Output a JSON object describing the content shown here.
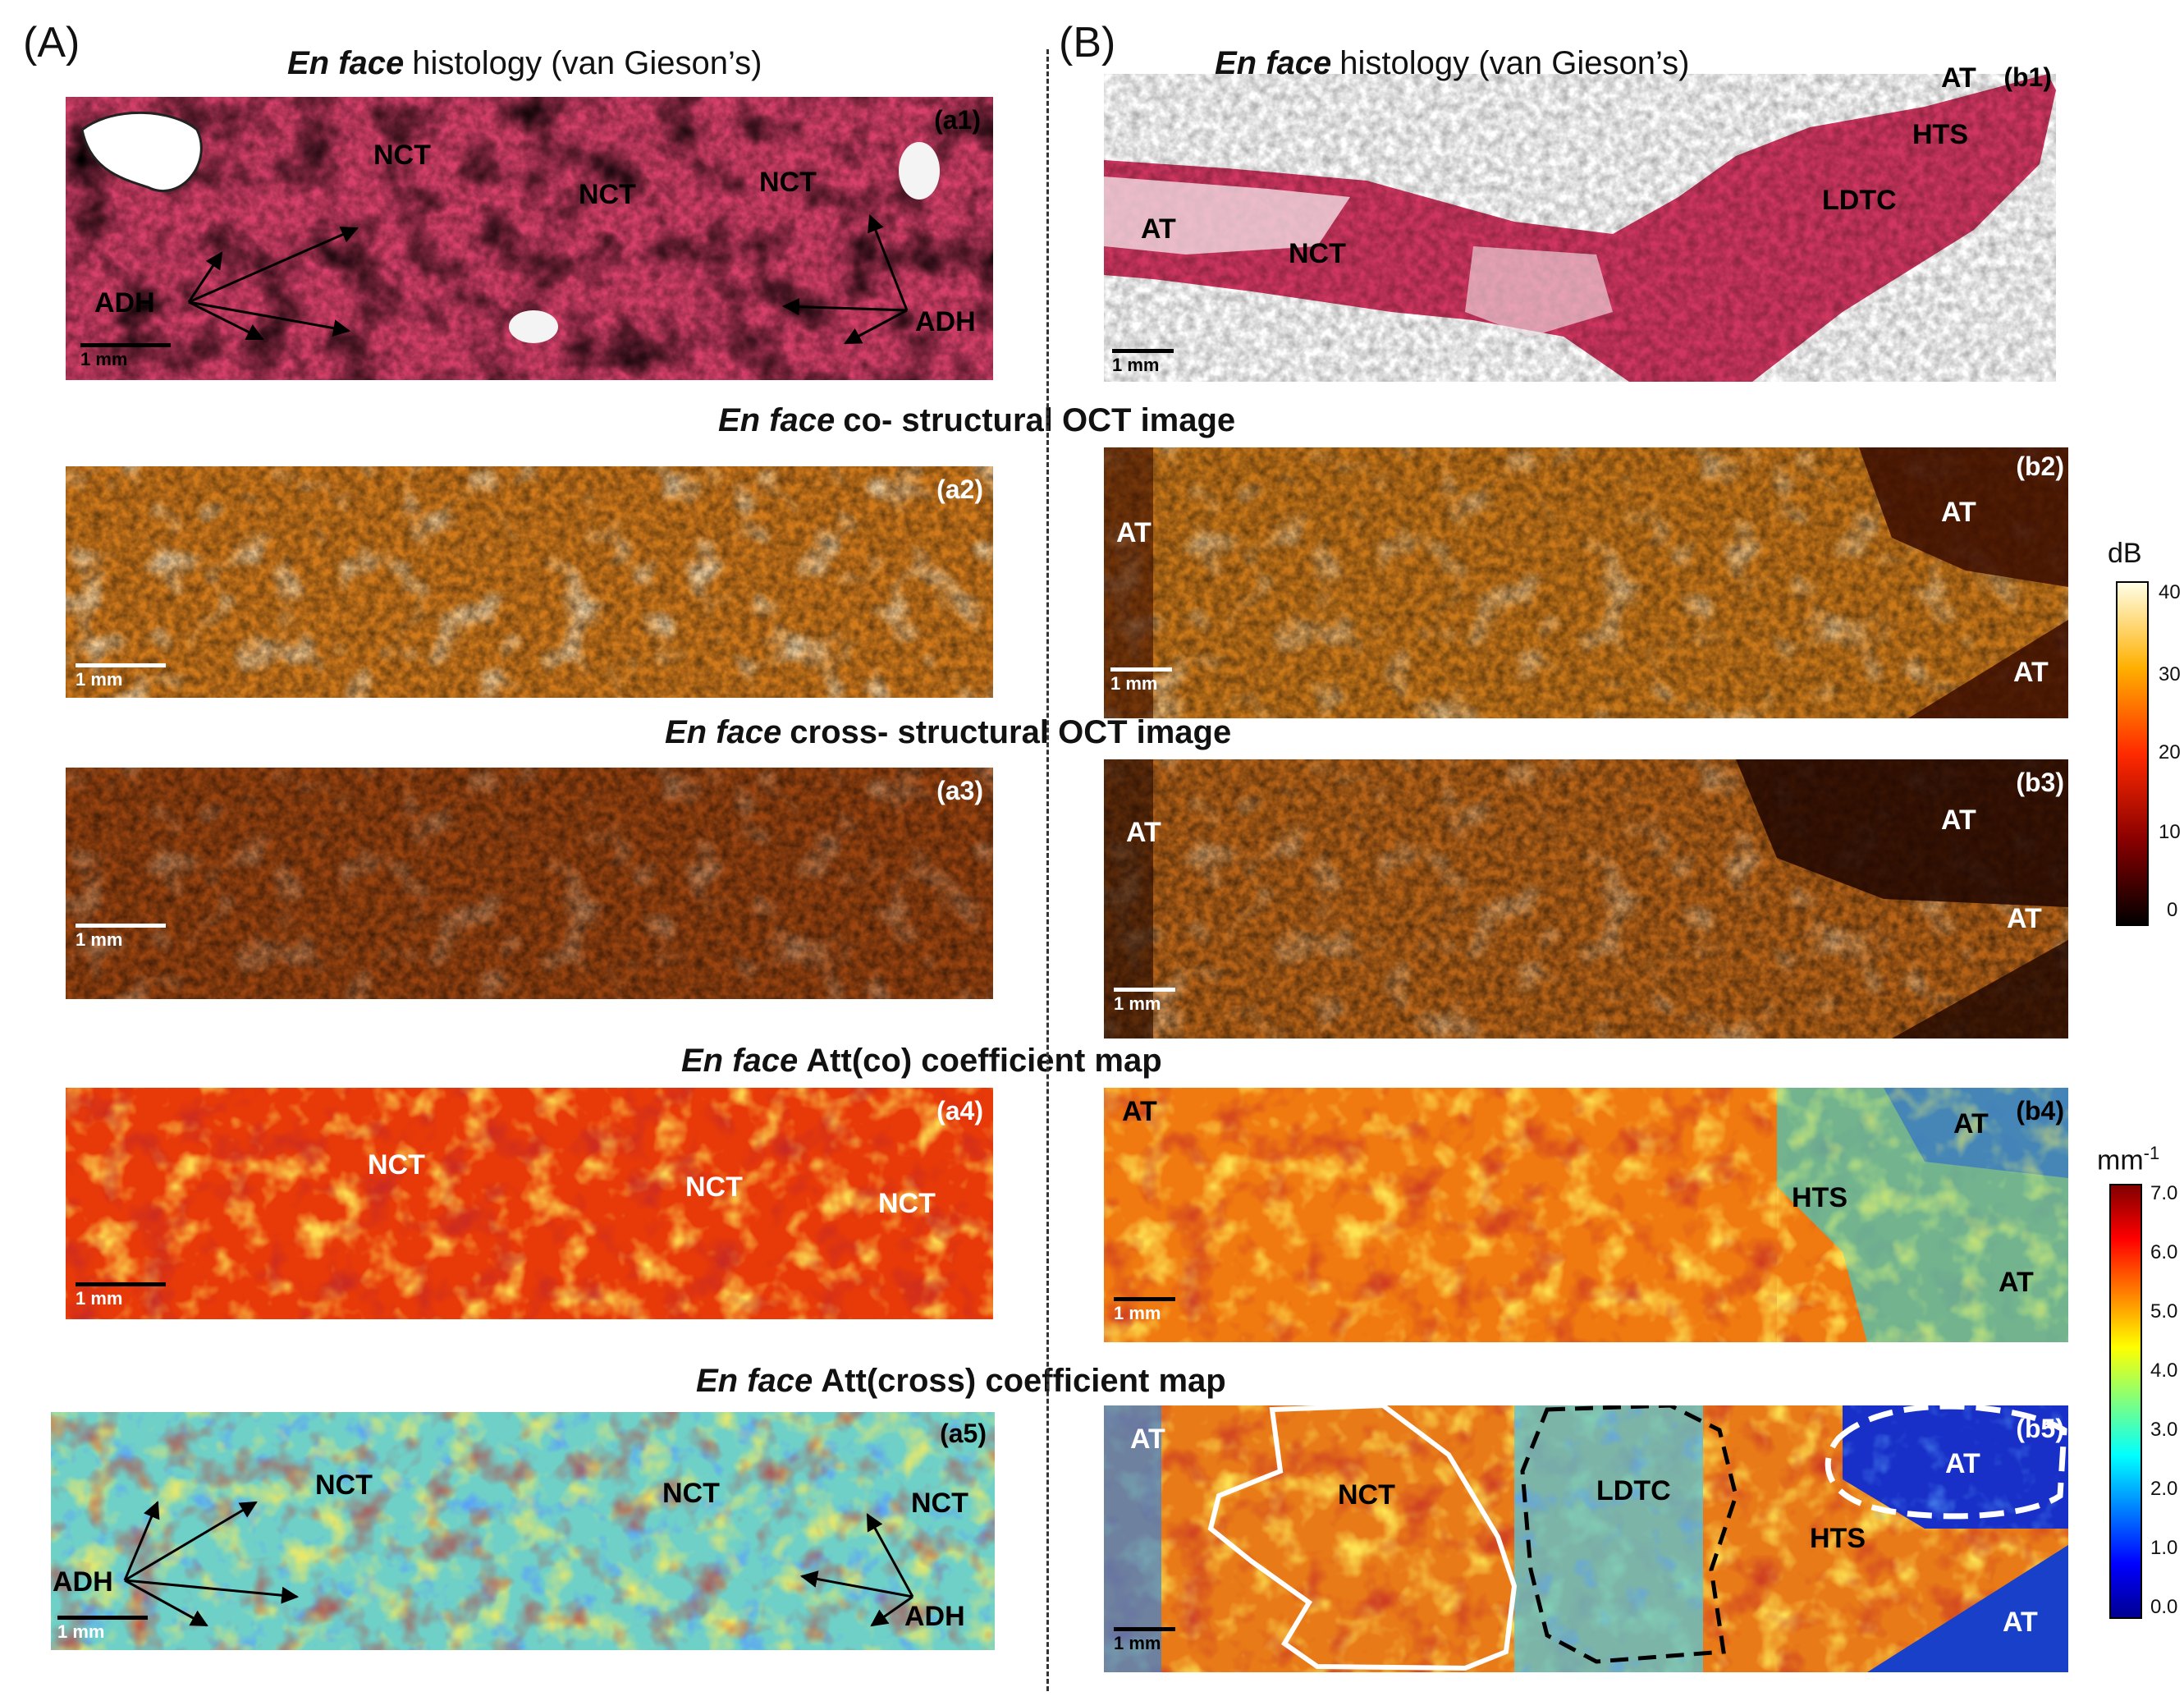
{
  "panels": {
    "A": "(A)",
    "B": "(B)"
  },
  "titles": {
    "row1": {
      "italic": "En face",
      "rest": "histology (van Gieson’s)"
    },
    "row2": {
      "italic": "En face",
      "rest": "co- structural OCT image"
    },
    "row3": {
      "italic": "En face",
      "rest": "cross- structural OCT image"
    },
    "row4": {
      "italic": "En face",
      "rest": "Att(co) coefficient map"
    },
    "row5": {
      "italic": "En face",
      "rest": "Att(cross)  coefficient  map"
    }
  },
  "tags": {
    "a1": "(a1)",
    "a2": "(a2)",
    "a3": "(a3)",
    "a4": "(a4)",
    "a5": "(a5)",
    "b1": "(b1)",
    "b2": "(b2)",
    "b3": "(b3)",
    "b4": "(b4)",
    "b5": "(b5)"
  },
  "scale_label": "1 mm",
  "labels": {
    "NCT": "NCT",
    "ADH": "ADH",
    "AT": "AT",
    "HTS": "HTS",
    "LDTC": "LDTC"
  },
  "colorbar_db": {
    "unit": "dB",
    "ticks": [
      "40",
      "30",
      "20",
      "10",
      "0"
    ]
  },
  "colorbar_att": {
    "unit": "mm",
    "unit_sup": "-1",
    "ticks": [
      "7.0",
      "6.0",
      "5.0",
      "4.0",
      "3.0",
      "2.0",
      "1.0",
      "0.0"
    ]
  },
  "colors": {
    "histology": "#c9305a",
    "oct_co": "#d98a2a",
    "oct_cross": "#a8501a",
    "att_co": "#d23a12",
    "att_cross": "#3fb6d8"
  }
}
